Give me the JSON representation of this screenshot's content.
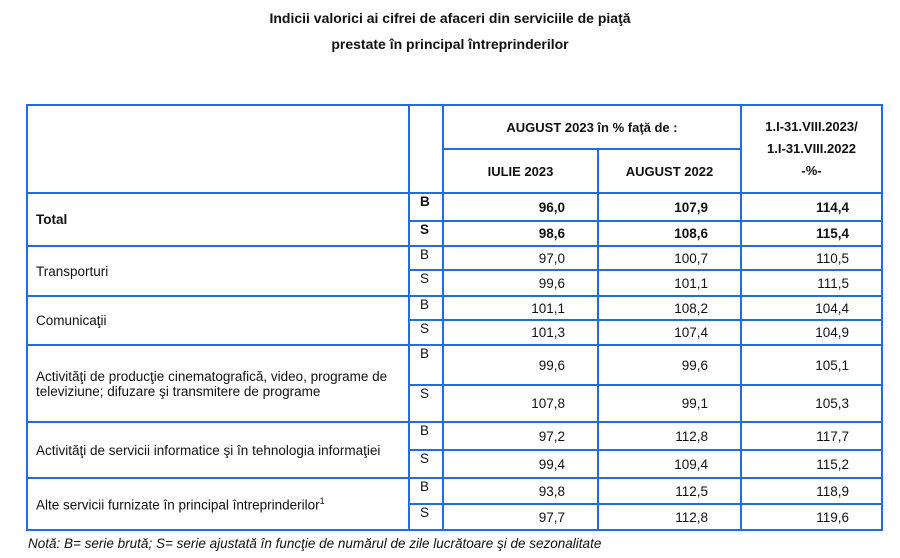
{
  "title_line1": "Indicii valorici ai cifrei de afaceri din serviciile de piaţă",
  "title_line2": "prestate în principal întreprinderilor",
  "header": {
    "group": "AUGUST 2023  în % faţă de :",
    "col1": "IULIE 2023",
    "col2": "AUGUST 2022",
    "col3_l1": "1.I-31.VIII.2023/",
    "col3_l2": "1.I-31.VIII.2022",
    "col3_l3": "-%-"
  },
  "rows": [
    {
      "label": "Total",
      "B": [
        "96,0",
        "107,9",
        "114,4"
      ],
      "S": [
        "98,6",
        "108,6",
        "115,4"
      ]
    },
    {
      "label": "Transporturi",
      "B": [
        "97,0",
        "100,7",
        "110,5"
      ],
      "S": [
        "99,6",
        "101,1",
        "111,5"
      ]
    },
    {
      "label": "Comunicaţii",
      "B": [
        "101,1",
        "108,2",
        "104,4"
      ],
      "S": [
        "101,3",
        "107,4",
        "104,9"
      ]
    },
    {
      "label": "Activităţi de producţie cinematografică, video, programe de televiziune; difuzare şi transmitere de programe",
      "B": [
        "99,6",
        "99,6",
        "105,1"
      ],
      "S": [
        "107,8",
        "99,1",
        "105,3"
      ]
    },
    {
      "label": "Activităţi de servicii informatice şi  în tehnologia informaţiei",
      "B": [
        "97,2",
        "112,8",
        "117,7"
      ],
      "S": [
        "99,4",
        "109,4",
        "115,2"
      ]
    },
    {
      "label": "Alte servicii furnizate în principal întreprinderilor",
      "sup": "1",
      "B": [
        "93,8",
        "112,5",
        "118,9"
      ],
      "S": [
        "97,7",
        "112,8",
        "119,6"
      ]
    }
  ],
  "flags": {
    "B": "B",
    "S": "S"
  },
  "note": "Notă: B= serie brută; S= serie ajustată în funcţie de numărul de zile lucrătoare şi de sezonalitate"
}
